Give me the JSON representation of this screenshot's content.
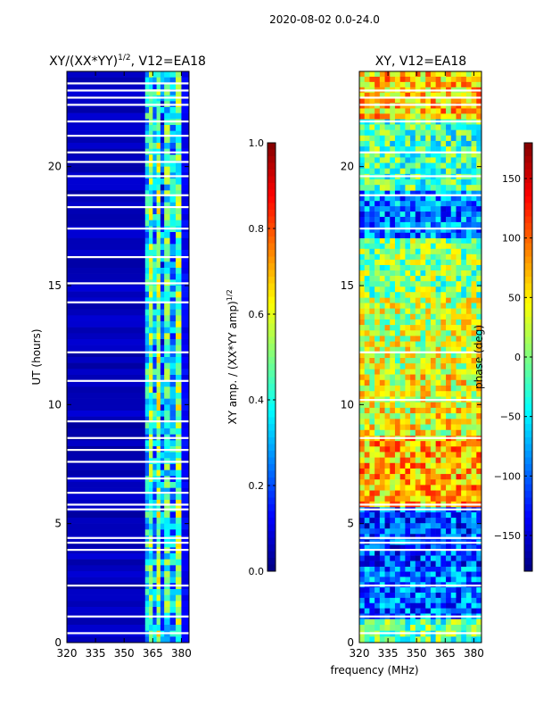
{
  "figure_title": "2020-08-02 0.0-24.0",
  "colors": {
    "jet": [
      "#00007f",
      "#0000ff",
      "#007fff",
      "#00ffff",
      "#7fff7f",
      "#ffff00",
      "#ff7f00",
      "#ff0000",
      "#7f0000"
    ],
    "gap": "#ffffff",
    "frame": "#000000"
  },
  "chart_data": [
    {
      "type": "heatmap",
      "title": "XY/(XX*YY)",
      "title_sup": "1/2",
      "title_suffix": ", V12=EA18",
      "xlabel": "",
      "ylabel": "UT (hours)",
      "xlim": [
        320,
        384
      ],
      "ylim": [
        0,
        24
      ],
      "xticks": [
        320,
        335,
        350,
        365,
        380
      ],
      "yticks": [
        0,
        5,
        10,
        15,
        20
      ],
      "colorbar": {
        "label": "XY amp. / (XX*YY amp)",
        "label_sup": "1/2",
        "range": [
          0.0,
          1.0
        ],
        "ticks": [
          "0.0",
          "0.2",
          "0.4",
          "0.6",
          "0.8",
          "1.0"
        ],
        "tick_values": [
          0.0,
          0.2,
          0.4,
          0.6,
          0.8,
          1.0
        ]
      },
      "bands": [
        {
          "from_mhz": 320,
          "to_mhz": 361,
          "value": 0.06
        },
        {
          "from_mhz": 361,
          "to_mhz": 363,
          "value": 0.35
        },
        {
          "from_mhz": 363,
          "to_mhz": 365,
          "value": 0.48
        },
        {
          "from_mhz": 365,
          "to_mhz": 367,
          "value": 0.3
        },
        {
          "from_mhz": 367,
          "to_mhz": 369,
          "value": 0.52
        },
        {
          "from_mhz": 369,
          "to_mhz": 371,
          "value": 0.22
        },
        {
          "from_mhz": 371,
          "to_mhz": 374,
          "value": 0.42
        },
        {
          "from_mhz": 374,
          "to_mhz": 377,
          "value": 0.3
        },
        {
          "from_mhz": 377,
          "to_mhz": 380,
          "value": 0.5
        },
        {
          "from_mhz": 380,
          "to_mhz": 384,
          "value": 0.12
        }
      ],
      "gaps_ut": [
        0.4,
        1.1,
        2.4,
        3.9,
        4.2,
        4.4,
        5.6,
        5.8,
        6.3,
        6.9,
        7.6,
        8.1,
        8.6,
        9.3,
        11.0,
        12.2,
        14.3,
        15.1,
        16.2,
        17.4,
        18.3,
        18.8,
        19.6,
        20.2,
        20.6,
        21.3,
        21.9,
        22.6,
        22.9,
        23.2,
        23.5
      ]
    },
    {
      "type": "heatmap",
      "title": "XY, V12=EA18",
      "xlabel": "frequency (MHz)",
      "ylabel": "",
      "xlim": [
        320,
        384
      ],
      "ylim": [
        0,
        24
      ],
      "xticks": [
        320,
        335,
        350,
        365,
        380
      ],
      "yticks": [
        0,
        5,
        10,
        15,
        20
      ],
      "colorbar": {
        "label": "phase (deg)",
        "range": [
          -180,
          180
        ],
        "ticks": [
          "−150",
          "−100",
          "−50",
          "0",
          "50",
          "100",
          "150"
        ],
        "tick_values": [
          -150,
          -100,
          -50,
          0,
          50,
          100,
          150
        ]
      },
      "blocks": [
        {
          "ut_from": 0.0,
          "ut_to": 1.0,
          "value": -10
        },
        {
          "ut_from": 1.0,
          "ut_to": 3.2,
          "value": -95
        },
        {
          "ut_from": 3.2,
          "ut_to": 5.7,
          "value": -110
        },
        {
          "ut_from": 5.7,
          "ut_to": 8.7,
          "value": 70
        },
        {
          "ut_from": 8.7,
          "ut_to": 11.5,
          "value": 40
        },
        {
          "ut_from": 11.5,
          "ut_to": 14.5,
          "value": 25
        },
        {
          "ut_from": 14.5,
          "ut_to": 17.0,
          "value": 0
        },
        {
          "ut_from": 17.0,
          "ut_to": 19.0,
          "value": -90
        },
        {
          "ut_from": 19.0,
          "ut_to": 22.0,
          "value": -20
        },
        {
          "ut_from": 22.0,
          "ut_to": 24.0,
          "value": 60
        }
      ],
      "gaps_ut": [
        0.4,
        1.1,
        2.4,
        3.9,
        4.2,
        4.4,
        5.6,
        5.8,
        8.6,
        10.2,
        12.2,
        17.4,
        18.8,
        19.6,
        20.6,
        21.9,
        22.6,
        22.9,
        23.2
      ]
    }
  ]
}
